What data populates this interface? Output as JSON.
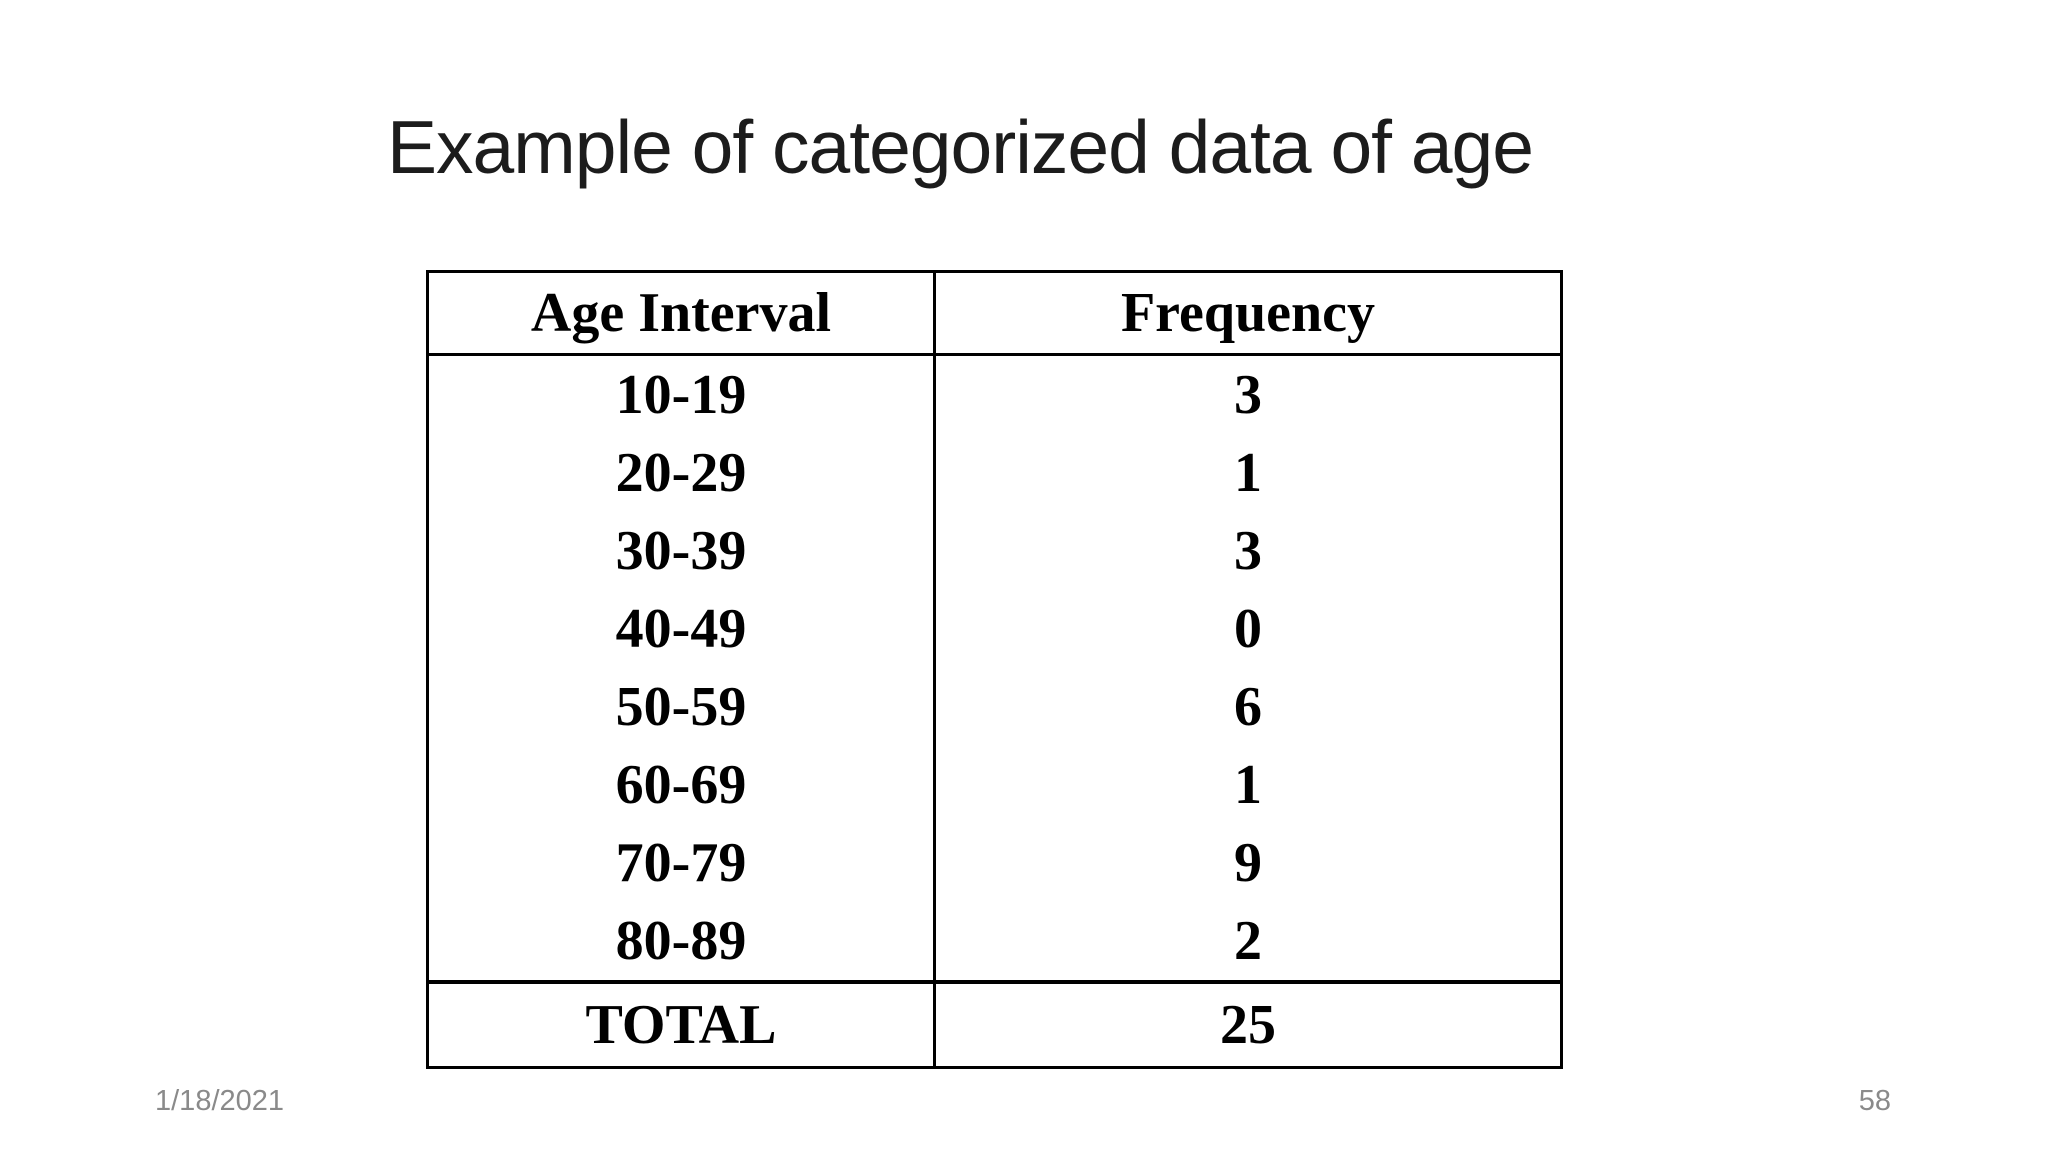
{
  "slide": {
    "title": "Example of categorized data of age",
    "footer": {
      "date": "1/18/2021",
      "slide_number": "58"
    }
  },
  "chart_data": {
    "type": "table",
    "title": "Example of categorized data of age",
    "columns": [
      "Age Interval",
      "Frequency"
    ],
    "rows": [
      [
        "10-19",
        "3"
      ],
      [
        "20-29",
        "1"
      ],
      [
        "30-39",
        "3"
      ],
      [
        "40-49",
        "0"
      ],
      [
        "50-59",
        "6"
      ],
      [
        "60-69",
        "1"
      ],
      [
        "70-79",
        "9"
      ],
      [
        "80-89",
        "2"
      ]
    ],
    "total": [
      "TOTAL",
      "25"
    ]
  },
  "colors": {
    "background": "#ffffff",
    "title_text": "#1c1c1c",
    "table_text": "#000000",
    "table_border": "#000000",
    "footer_text": "#8a8a8a"
  }
}
